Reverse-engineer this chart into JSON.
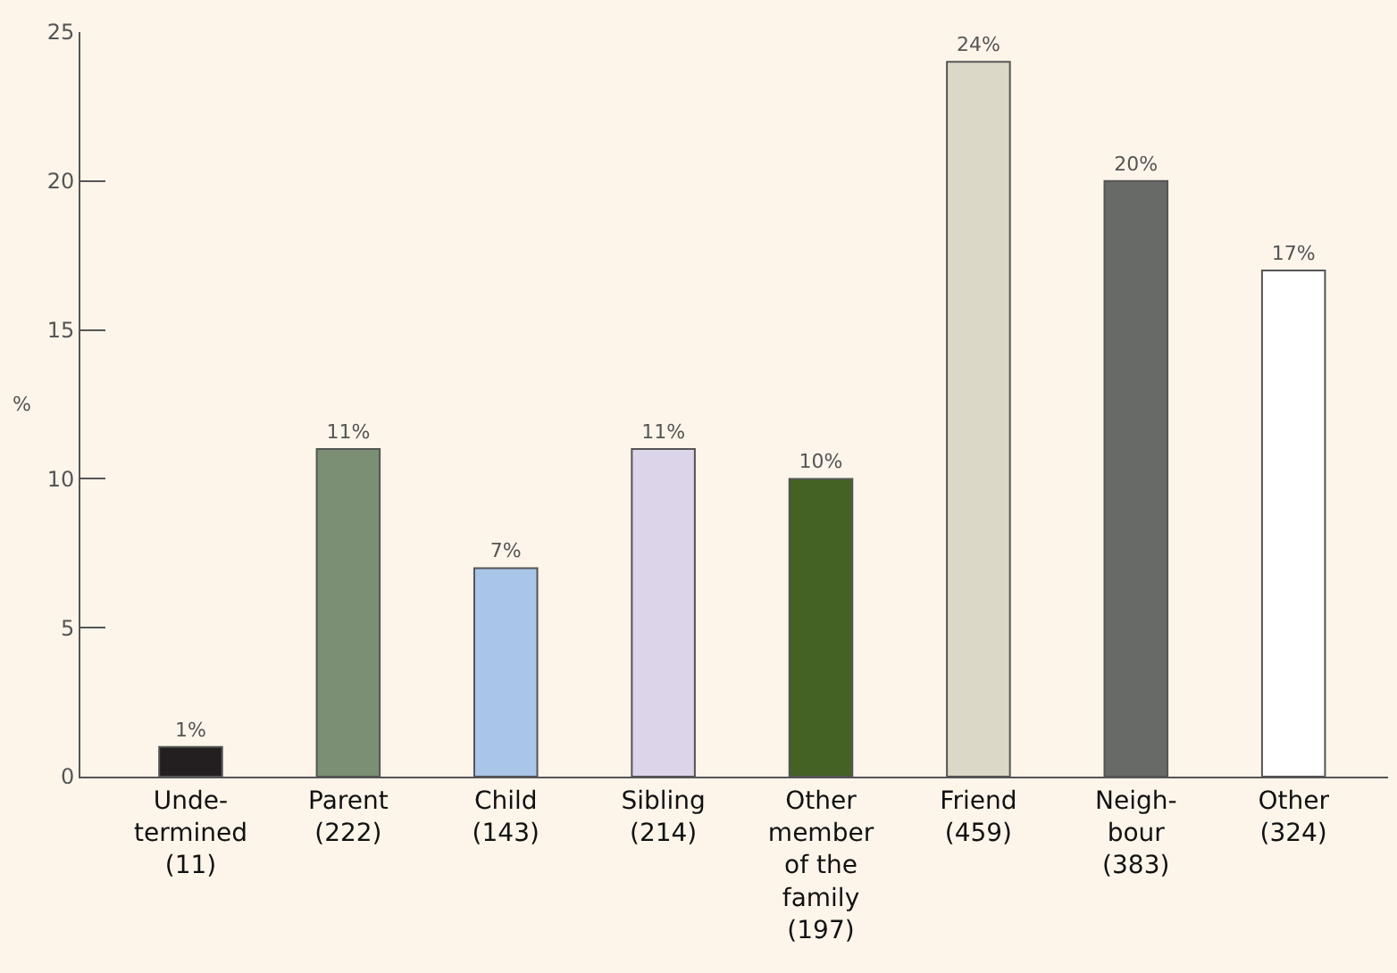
{
  "chart_data": {
    "type": "bar",
    "ylabel": "%",
    "categories": [
      "Unde-\ntermined\n(11)",
      "Parent\n(222)",
      "Child\n(143)",
      "Sibling\n(214)",
      "Other\nmember\nof the\nfamily\n(197)",
      "Friend\n(459)",
      "Neigh-\nbour\n(383)",
      "Other\n(324)"
    ],
    "values": [
      1,
      11,
      7,
      11,
      10,
      24,
      20,
      17
    ],
    "value_labels": [
      "1%",
      "11%",
      "7%",
      "11%",
      "10%",
      "24%",
      "20%",
      "17%"
    ],
    "colors": [
      "#231f20",
      "#7a8f73",
      "#a9c5e8",
      "#dcd5ea",
      "#436224",
      "#dcd8c7",
      "#676a66",
      "#ffffff"
    ],
    "ylim": [
      0,
      25
    ],
    "yticks": [
      0,
      5,
      10,
      15,
      20,
      25
    ],
    "grid": false
  }
}
